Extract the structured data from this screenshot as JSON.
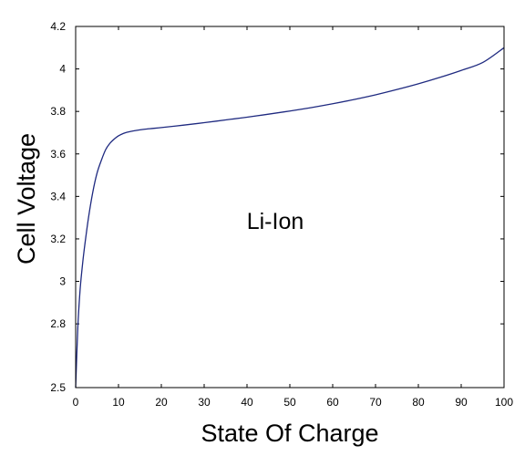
{
  "chart_data": {
    "type": "line",
    "xlabel": "State Of Charge",
    "ylabel": "Cell Voltage",
    "xlim": [
      0,
      100
    ],
    "ylim": [
      2.5,
      4.2
    ],
    "xticks": [
      0,
      10,
      20,
      30,
      40,
      50,
      60,
      70,
      80,
      90,
      100
    ],
    "yticks": [
      2.5,
      2.8,
      3,
      3.2,
      3.4,
      3.6,
      3.8,
      4,
      4.2
    ],
    "xtick_labels": [
      "0",
      "10",
      "20",
      "30",
      "40",
      "50",
      "60",
      "70",
      "80",
      "90",
      "100"
    ],
    "ytick_labels": [
      "2.5",
      "2.8",
      "3",
      "3.2",
      "3.4",
      "3.6",
      "3.8",
      "4",
      "4.2"
    ],
    "grid": false,
    "annotation": "Li-Ion",
    "series": [
      {
        "color": "#1f2a80",
        "x": [
          0,
          0.5,
          1,
          1.5,
          2,
          3,
          4,
          5,
          6,
          7,
          8,
          9,
          10,
          11,
          12,
          14,
          16,
          18,
          20,
          25,
          30,
          35,
          40,
          45,
          50,
          55,
          60,
          65,
          70,
          75,
          80,
          85,
          90,
          95,
          100
        ],
        "y": [
          2.5,
          2.78,
          2.95,
          3.06,
          3.15,
          3.3,
          3.42,
          3.51,
          3.57,
          3.62,
          3.65,
          3.67,
          3.685,
          3.695,
          3.702,
          3.71,
          3.716,
          3.72,
          3.724,
          3.735,
          3.747,
          3.76,
          3.773,
          3.787,
          3.802,
          3.818,
          3.836,
          3.856,
          3.878,
          3.903,
          3.93,
          3.96,
          3.993,
          4.03,
          4.1
        ]
      }
    ]
  }
}
